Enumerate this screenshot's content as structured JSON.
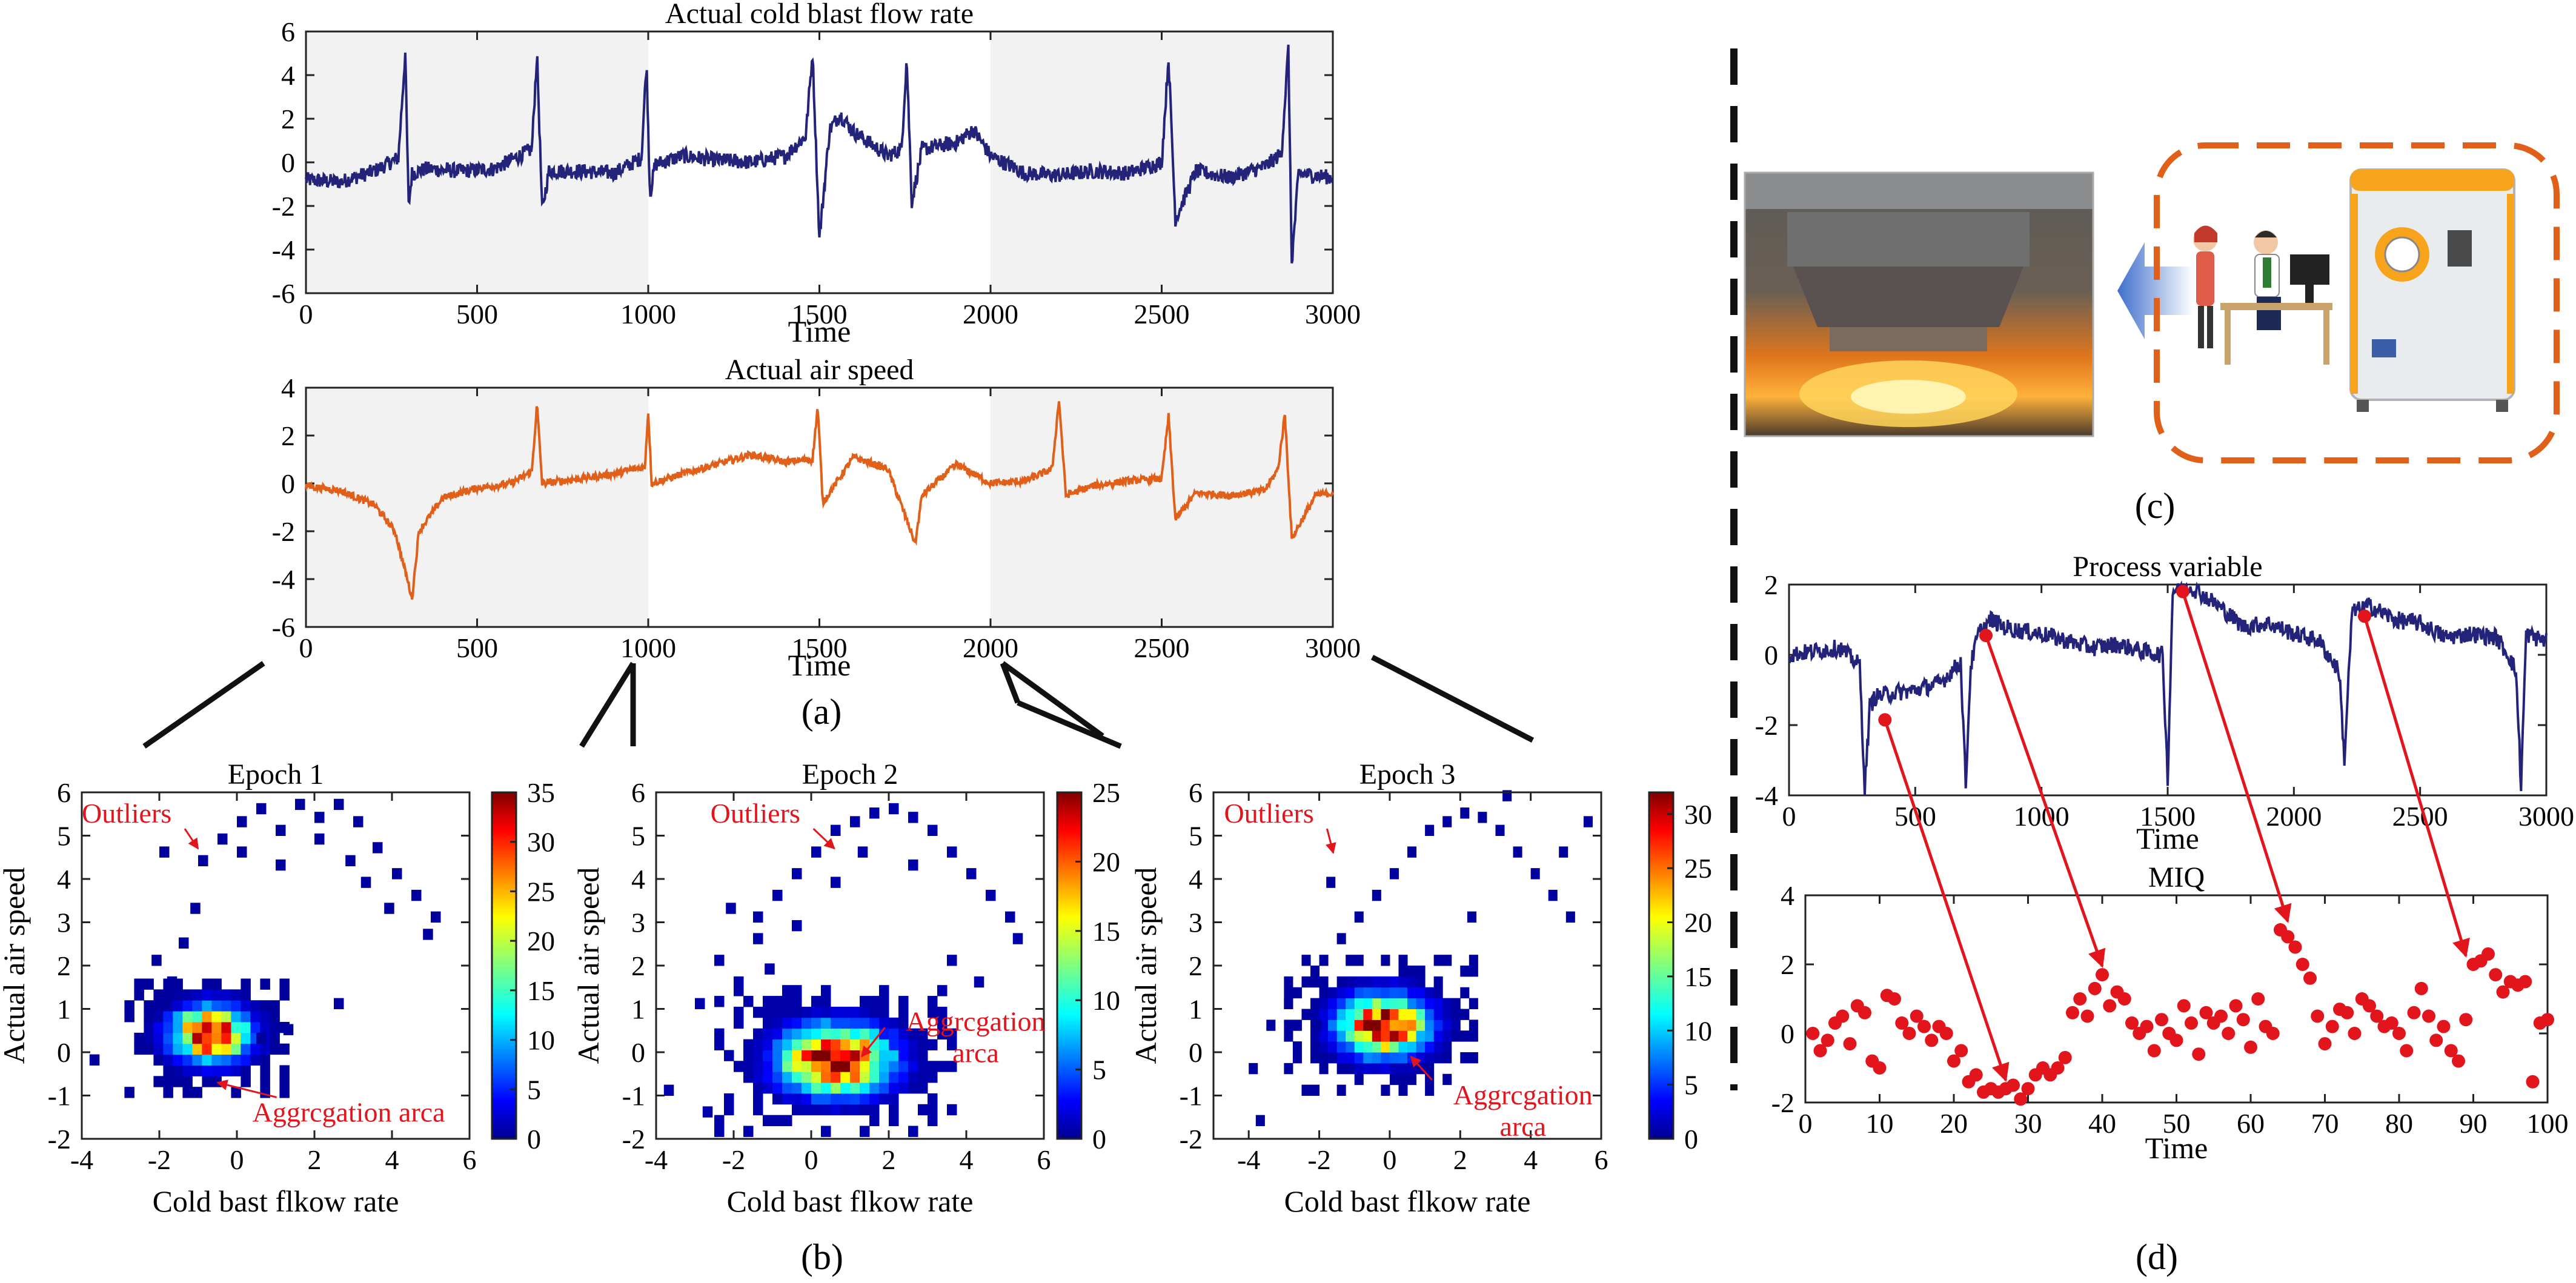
{
  "colors": {
    "flow_line": "#23237a",
    "speed_line": "#e0601a",
    "mark_red": "#e2141c",
    "shade": "#f2f2f2",
    "dashed_box": "#e0601a"
  },
  "panel_labels": {
    "a": "(a)",
    "b": "(b)",
    "c": "(c)",
    "d": "(d)"
  },
  "annotations": {
    "outliers": "Outliers",
    "aggregation": "Aggrcgation arca",
    "aggregation_l1": "Aggrcgation",
    "aggregation_l2": "arca"
  },
  "icons": {
    "furnace_photo": "blast-furnace-photo",
    "operators": "operators-at-desk-illustration",
    "analyzer": "lab-analyzer-machine-illustration",
    "arrow": "left-arrow-icon"
  },
  "chart_data": [
    {
      "id": "a1",
      "type": "line",
      "title": "Actual cold blast flow rate",
      "xlabel": "Time",
      "ylabel": "",
      "xlim": [
        0,
        3000
      ],
      "ylim": [
        -6,
        6
      ],
      "xticks": [
        0,
        500,
        1000,
        1500,
        2000,
        2500,
        3000
      ],
      "yticks": [
        -6,
        -4,
        -2,
        0,
        2,
        4,
        6
      ],
      "shaded_epochs": [
        [
          0,
          1000
        ],
        [
          2000,
          3000
        ]
      ],
      "series": [
        {
          "color": "#23237a",
          "noise": 0.35,
          "x": [
            0,
            100,
            200,
            270,
            290,
            300,
            310,
            350,
            450,
            550,
            660,
            675,
            690,
            710,
            800,
            900,
            980,
            995,
            1005,
            1020,
            1100,
            1200,
            1300,
            1400,
            1460,
            1480,
            1500,
            1530,
            1560,
            1600,
            1700,
            1740,
            1755,
            1770,
            1800,
            1900,
            1950,
            2000,
            2100,
            2200,
            2300,
            2400,
            2500,
            2520,
            2540,
            2600,
            2700,
            2800,
            2850,
            2870,
            2880,
            2900,
            2950,
            3000
          ],
          "y": [
            -0.8,
            -0.9,
            -0.4,
            0.2,
            5.0,
            -2.0,
            -0.5,
            -0.3,
            -0.4,
            -0.3,
            0.6,
            5.0,
            -2.2,
            -0.4,
            -0.4,
            -0.5,
            0.2,
            4.6,
            -1.5,
            -0.1,
            0.3,
            0.1,
            0.0,
            0.3,
            1.2,
            5.0,
            -3.5,
            1.5,
            2.2,
            1.4,
            0.3,
            0.6,
            4.8,
            -1.8,
            0.6,
            0.9,
            1.5,
            0.3,
            -0.5,
            -0.6,
            -0.4,
            -0.5,
            0.0,
            4.8,
            -2.6,
            -0.4,
            -0.7,
            -0.2,
            0.4,
            5.2,
            -4.6,
            -0.5,
            -0.6,
            -0.7
          ]
        }
      ]
    },
    {
      "id": "a2",
      "type": "line",
      "title": "Actual air speed",
      "xlabel": "Time",
      "ylabel": "",
      "xlim": [
        0,
        3000
      ],
      "ylim": [
        -6,
        4
      ],
      "xticks": [
        0,
        500,
        1000,
        1500,
        2000,
        2500,
        3000
      ],
      "yticks": [
        -6,
        -4,
        -2,
        0,
        2,
        4
      ],
      "shaded_epochs": [
        [
          0,
          1000
        ],
        [
          2000,
          3000
        ]
      ],
      "series": [
        {
          "color": "#e0601a",
          "noise": 0.15,
          "x": [
            0,
            100,
            200,
            260,
            310,
            330,
            400,
            500,
            600,
            660,
            675,
            690,
            800,
            900,
            990,
            1000,
            1010,
            1100,
            1200,
            1300,
            1400,
            1480,
            1495,
            1510,
            1600,
            1700,
            1780,
            1800,
            1900,
            2000,
            2100,
            2180,
            2200,
            2220,
            2300,
            2400,
            2500,
            2520,
            2540,
            2600,
            2700,
            2800,
            2840,
            2860,
            2880,
            2950,
            3000
          ],
          "y": [
            -0.1,
            -0.3,
            -0.9,
            -2.0,
            -4.8,
            -2.0,
            -0.6,
            -0.2,
            0.0,
            0.5,
            3.3,
            0.0,
            0.2,
            0.4,
            0.7,
            3.0,
            0.0,
            0.4,
            0.8,
            1.2,
            0.9,
            1.0,
            3.2,
            -0.8,
            1.1,
            0.6,
            -2.5,
            -0.5,
            0.8,
            0.0,
            0.1,
            0.6,
            3.5,
            -0.5,
            -0.1,
            0.1,
            0.2,
            2.8,
            -1.5,
            -0.4,
            -0.5,
            -0.3,
            0.6,
            2.9,
            -2.3,
            -0.5,
            -0.4
          ]
        }
      ]
    },
    {
      "id": "b1",
      "type": "heatmap",
      "title": "Epoch 1",
      "xlabel": "Cold bast flkow rate",
      "ylabel": "Actual air speed",
      "xlim": [
        -4,
        6
      ],
      "ylim": [
        -2,
        6
      ],
      "xticks": [
        -4,
        -2,
        0,
        2,
        4,
        6
      ],
      "yticks": [
        -2,
        -1,
        0,
        1,
        2,
        3,
        4,
        5,
        6
      ],
      "colorbar": {
        "min": 0,
        "max": 35,
        "ticks": [
          0,
          5,
          10,
          15,
          20,
          25,
          30,
          35
        ]
      },
      "cluster": {
        "cx": -0.8,
        "cy": 0.3,
        "peak": 35,
        "sx": 0.7,
        "sy": 0.45
      },
      "outliers": [
        [
          -2.0,
          4.5
        ],
        [
          -1.0,
          4.3
        ],
        [
          -0.5,
          4.8
        ],
        [
          0.0,
          5.2
        ],
        [
          0.5,
          5.5
        ],
        [
          1.0,
          5.0
        ],
        [
          1.5,
          5.6
        ],
        [
          2.0,
          5.3
        ],
        [
          2.5,
          5.6
        ],
        [
          3.0,
          5.2
        ],
        [
          3.5,
          4.6
        ],
        [
          4.0,
          4.0
        ],
        [
          4.5,
          3.5
        ],
        [
          5.0,
          3.0
        ],
        [
          4.8,
          2.6
        ],
        [
          -2.2,
          2.0
        ],
        [
          -1.8,
          1.5
        ],
        [
          -1.5,
          2.4
        ],
        [
          -2.0,
          1.0
        ],
        [
          -3.8,
          -0.3
        ],
        [
          2.5,
          1.0
        ],
        [
          1.2,
          0.4
        ],
        [
          0.5,
          0.2
        ],
        [
          0.0,
          4.5
        ],
        [
          1.0,
          4.2
        ],
        [
          2.0,
          4.8
        ],
        [
          3.2,
          3.8
        ],
        [
          -1.2,
          3.2
        ],
        [
          2.8,
          4.3
        ],
        [
          3.8,
          3.2
        ]
      ],
      "outlier_label": {
        "text": "Outliers",
        "x": -4.0,
        "y": 5.3,
        "ax": -1.0,
        "ay": 4.7
      },
      "agg_label": {
        "text": "Aggrcgation arca",
        "x": 0.4,
        "y": -1.6,
        "ax": -0.5,
        "ay": -0.7
      }
    },
    {
      "id": "b2",
      "type": "heatmap",
      "title": "Epoch 2",
      "xlabel": "Cold bast flkow rate",
      "ylabel": "Actual air speed",
      "xlim": [
        -4,
        6
      ],
      "ylim": [
        -2,
        6
      ],
      "xticks": [
        -4,
        -2,
        0,
        2,
        4,
        6
      ],
      "yticks": [
        -2,
        -1,
        0,
        1,
        2,
        3,
        4,
        5,
        6
      ],
      "colorbar": {
        "min": 0,
        "max": 25,
        "ticks": [
          0,
          5,
          10,
          15,
          20,
          25
        ]
      },
      "cluster": {
        "cx": 0.5,
        "cy": -0.3,
        "peak": 27,
        "sx": 1.0,
        "sy": 0.55
      },
      "outliers": [
        [
          -1.5,
          3.0
        ],
        [
          -1.0,
          3.5
        ],
        [
          -0.5,
          4.0
        ],
        [
          0.0,
          4.5
        ],
        [
          0.5,
          5.0
        ],
        [
          1.0,
          5.2
        ],
        [
          1.5,
          5.4
        ],
        [
          2.0,
          5.5
        ],
        [
          2.5,
          5.3
        ],
        [
          3.0,
          5.0
        ],
        [
          3.5,
          4.5
        ],
        [
          4.0,
          4.0
        ],
        [
          4.5,
          3.5
        ],
        [
          5.0,
          3.0
        ],
        [
          5.2,
          2.5
        ],
        [
          -2.5,
          2.0
        ],
        [
          -2.0,
          1.5
        ],
        [
          -1.5,
          2.5
        ],
        [
          -3.0,
          1.0
        ],
        [
          -3.8,
          -1.0
        ],
        [
          -2.8,
          -1.5
        ],
        [
          -1.2,
          1.8
        ],
        [
          0.5,
          3.8
        ],
        [
          3.5,
          2.0
        ],
        [
          4.2,
          1.5
        ],
        [
          -2.2,
          3.2
        ],
        [
          1.2,
          4.5
        ],
        [
          2.5,
          4.2
        ],
        [
          -0.5,
          2.8
        ]
      ],
      "outlier_label": {
        "text": "Outliers",
        "x": -2.6,
        "y": 5.3,
        "ax": 0.6,
        "ay": 4.7
      },
      "agg_label": {
        "text": "Aggrcgation arca",
        "x": 1.9,
        "y": 0.5,
        "ax": 1.3,
        "ay": -0.1
      }
    },
    {
      "id": "b3",
      "type": "heatmap",
      "title": "Epoch 3",
      "xlabel": "Cold bast flkow rate",
      "ylabel": "Actual air speed",
      "xlim": [
        -5,
        6
      ],
      "ylim": [
        -2,
        6
      ],
      "xticks": [
        -4,
        -2,
        0,
        2,
        4,
        6
      ],
      "yticks": [
        -2,
        -1,
        0,
        1,
        2,
        3,
        4,
        5,
        6
      ],
      "colorbar": {
        "min": 0,
        "max": 32,
        "ticks": [
          0,
          5,
          10,
          15,
          20,
          25,
          30
        ]
      },
      "cluster": {
        "cx": -0.3,
        "cy": 0.5,
        "peak": 32,
        "sx": 0.9,
        "sy": 0.5
      },
      "outliers": [
        [
          -1.5,
          2.5
        ],
        [
          -1.0,
          3.0
        ],
        [
          -0.5,
          3.5
        ],
        [
          0.0,
          4.0
        ],
        [
          0.5,
          4.5
        ],
        [
          1.0,
          5.0
        ],
        [
          1.5,
          5.2
        ],
        [
          2.0,
          5.4
        ],
        [
          2.5,
          5.3
        ],
        [
          3.0,
          5.0
        ],
        [
          3.5,
          4.5
        ],
        [
          4.0,
          4.0
        ],
        [
          4.5,
          3.5
        ],
        [
          5.0,
          3.0
        ],
        [
          5.5,
          5.2
        ],
        [
          -2.5,
          2.0
        ],
        [
          -2.0,
          1.5
        ],
        [
          -3.0,
          1.0
        ],
        [
          -3.5,
          0.5
        ],
        [
          -4.0,
          -0.5
        ],
        [
          -3.8,
          -1.7
        ],
        [
          -2.2,
          0.5
        ],
        [
          -1.8,
          3.8
        ],
        [
          3.2,
          5.8
        ],
        [
          4.8,
          4.5
        ],
        [
          2.2,
          3.0
        ]
      ],
      "outlier_label": {
        "text": "Outliers",
        "x": -4.7,
        "y": 5.3,
        "ax": -1.6,
        "ay": 4.6
      },
      "agg_label": {
        "text": "Aggrcgation arca",
        "x": 1.2,
        "y": -1.2,
        "ax": 0.6,
        "ay": -0.1
      }
    },
    {
      "id": "d1",
      "type": "line",
      "title": "Process variable",
      "xlabel": "Time",
      "ylabel": "",
      "xlim": [
        0,
        3000
      ],
      "ylim": [
        -4,
        2
      ],
      "xticks": [
        0,
        500,
        1000,
        1500,
        2000,
        2500,
        3000
      ],
      "yticks": [
        -4,
        -2,
        0,
        2
      ],
      "series": [
        {
          "color": "#23237a",
          "noise": 0.25,
          "x": [
            0,
            100,
            200,
            280,
            300,
            320,
            340,
            400,
            500,
            600,
            680,
            700,
            720,
            750,
            800,
            850,
            900,
            1000,
            1100,
            1200,
            1300,
            1400,
            1480,
            1500,
            1520,
            1550,
            1600,
            1700,
            1800,
            1900,
            2000,
            2100,
            2180,
            2200,
            2230,
            2300,
            2400,
            2500,
            2600,
            2700,
            2800,
            2850,
            2880,
            2900,
            2920,
            2950,
            3000
          ],
          "y": [
            0.0,
            0.1,
            0.2,
            -0.3,
            -3.8,
            -1.5,
            -1.2,
            -1.1,
            -1.0,
            -0.8,
            -0.2,
            -3.7,
            -0.3,
            0.6,
            1.0,
            0.8,
            0.7,
            0.6,
            0.4,
            0.2,
            0.3,
            0.1,
            0.0,
            -3.5,
            1.8,
            2.0,
            1.9,
            1.4,
            0.8,
            0.9,
            0.6,
            0.4,
            -0.5,
            -3.0,
            1.2,
            1.4,
            1.0,
            0.9,
            0.5,
            0.6,
            0.5,
            0.0,
            -0.5,
            -3.7,
            0.6,
            0.5,
            0.4
          ]
        }
      ],
      "markers": [
        [
          380,
          -1.85
        ],
        [
          780,
          0.55
        ],
        [
          1560,
          1.8
        ],
        [
          2280,
          1.1
        ]
      ]
    },
    {
      "id": "d2",
      "type": "scatter",
      "title": "MIQ",
      "xlabel": "Time",
      "ylabel": "",
      "xlim": [
        0,
        100
      ],
      "ylim": [
        -2,
        4
      ],
      "xticks": [
        0,
        10,
        20,
        30,
        40,
        50,
        60,
        70,
        80,
        90,
        100
      ],
      "yticks": [
        -2,
        0,
        2,
        4
      ],
      "x": [
        1,
        2,
        3,
        4,
        5,
        6,
        7,
        8,
        9,
        10,
        11,
        12,
        13,
        14,
        15,
        16,
        17,
        18,
        19,
        20,
        21,
        22,
        23,
        24,
        25,
        26,
        27,
        28,
        29,
        30,
        31,
        32,
        33,
        34,
        35,
        36,
        37,
        38,
        39,
        40,
        41,
        42,
        43,
        44,
        45,
        46,
        47,
        48,
        49,
        50,
        51,
        52,
        53,
        54,
        55,
        56,
        57,
        58,
        59,
        60,
        61,
        62,
        63,
        64,
        65,
        66,
        67,
        68,
        69,
        70,
        71,
        72,
        73,
        74,
        75,
        76,
        77,
        78,
        79,
        80,
        81,
        82,
        83,
        84,
        85,
        86,
        87,
        88,
        89,
        90,
        91,
        92,
        93,
        94,
        95,
        96,
        97,
        98,
        99,
        100
      ],
      "y": [
        0.0,
        -0.5,
        -0.2,
        0.3,
        0.5,
        -0.3,
        0.8,
        0.6,
        -0.8,
        -1.0,
        1.1,
        1.0,
        0.3,
        0.0,
        0.5,
        0.2,
        -0.2,
        0.2,
        0.0,
        -0.8,
        -0.5,
        -1.4,
        -1.2,
        -1.7,
        -1.6,
        -1.7,
        -1.6,
        -1.5,
        -1.9,
        -1.6,
        -1.2,
        -1.0,
        -1.2,
        -1.0,
        -0.7,
        0.6,
        1.0,
        0.5,
        1.3,
        1.7,
        0.8,
        1.2,
        1.0,
        0.3,
        0.0,
        0.2,
        -0.5,
        0.4,
        0.0,
        -0.2,
        0.8,
        0.3,
        -0.6,
        0.6,
        0.3,
        0.5,
        0.0,
        0.8,
        0.4,
        -0.4,
        1.0,
        0.2,
        0.0,
        3.0,
        2.8,
        2.5,
        2.0,
        1.6,
        0.5,
        -0.3,
        0.2,
        0.7,
        0.6,
        0.0,
        1.0,
        0.8,
        0.5,
        0.2,
        0.3,
        0.0,
        -0.5,
        0.6,
        1.3,
        0.5,
        -0.2,
        0.2,
        -0.5,
        -0.8,
        0.4,
        2.0,
        2.1,
        2.3,
        1.7,
        1.2,
        1.5,
        1.4,
        1.5,
        -1.4,
        0.3,
        0.4
      ]
    }
  ]
}
